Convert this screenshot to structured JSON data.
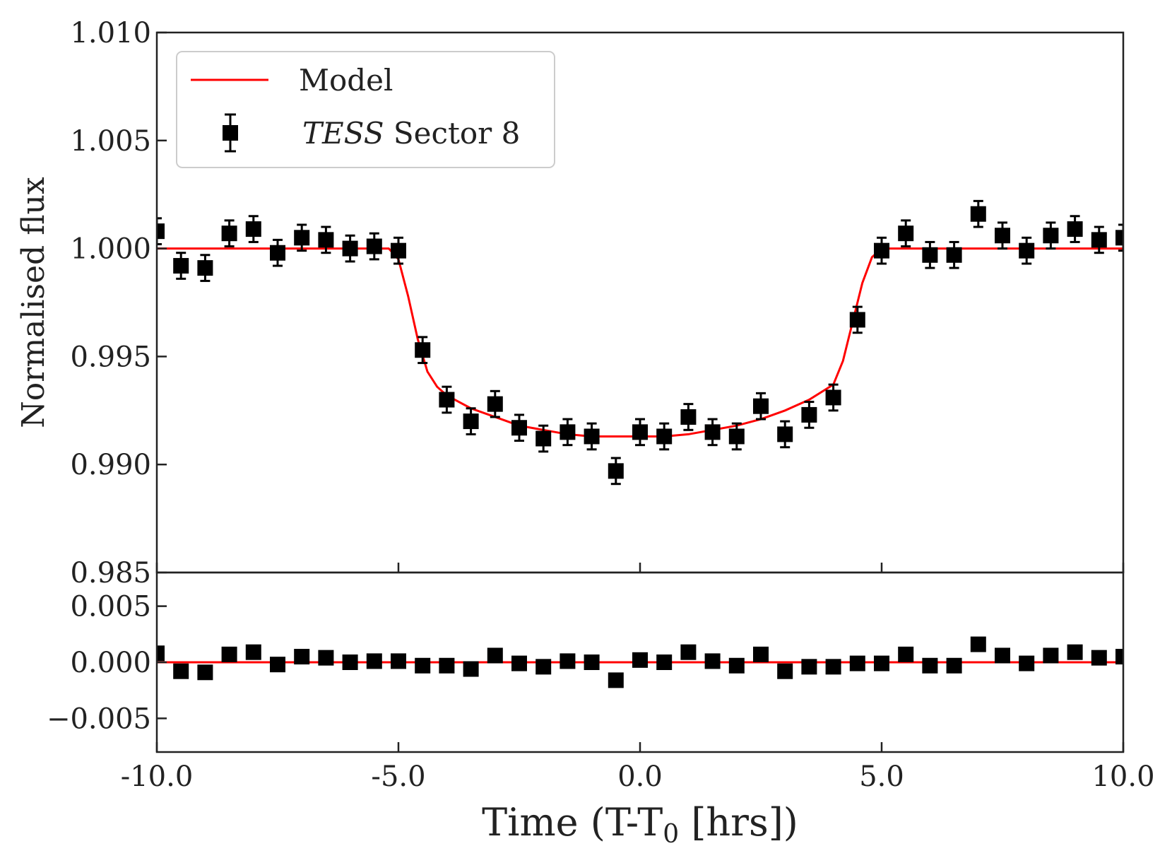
{
  "chart_data": [
    {
      "type": "scatter",
      "panel": "main",
      "xlabel": "Time (T-T",
      "xlabel_sub": "0",
      "xlabel_suffix": " [hrs])",
      "ylabel": "Normalised flux",
      "xlim": [
        -10,
        10
      ],
      "ylim": [
        0.985,
        1.01
      ],
      "x_ticks": [
        -10,
        -5,
        0,
        5,
        10
      ],
      "x_tick_labels": [
        "-10.0",
        "-5.0",
        "0.0",
        "5.0",
        "10.0"
      ],
      "y_ticks": [
        0.985,
        0.99,
        0.995,
        1.0,
        1.005,
        1.01
      ],
      "y_tick_labels": [
        "0.985",
        "0.990",
        "0.995",
        "1.000",
        "1.005",
        "1.010"
      ],
      "legend": {
        "placement": "top-left",
        "entries": [
          {
            "label": "Model",
            "kind": "line",
            "color": "#ff0000"
          },
          {
            "label_italic": "TESS",
            "label": " Sector 8",
            "kind": "errorbar-square",
            "color": "#000000"
          }
        ]
      },
      "series": [
        {
          "name": "TESS Sector 8",
          "kind": "errorbar-square",
          "color": "#000000",
          "x": [
            -10.0,
            -9.5,
            -9.0,
            -8.5,
            -8.0,
            -7.5,
            -7.0,
            -6.5,
            -6.0,
            -5.5,
            -5.0,
            -4.5,
            -4.0,
            -3.5,
            -3.0,
            -2.5,
            -2.0,
            -1.5,
            -1.0,
            -0.5,
            0.0,
            0.5,
            1.0,
            1.5,
            2.0,
            2.5,
            3.0,
            3.5,
            4.0,
            4.5,
            5.0,
            5.5,
            6.0,
            6.5,
            7.0,
            7.5,
            8.0,
            8.5,
            9.0,
            9.5,
            10.0
          ],
          "y": [
            1.0008,
            0.9992,
            0.9991,
            1.0007,
            1.0009,
            0.9998,
            1.0005,
            1.0004,
            1.0,
            1.0001,
            0.9999,
            0.9953,
            0.993,
            0.992,
            0.9928,
            0.9917,
            0.9912,
            0.9915,
            0.9913,
            0.9897,
            0.9915,
            0.9913,
            0.9922,
            0.9915,
            0.9913,
            0.9927,
            0.9914,
            0.9923,
            0.9931,
            0.9967,
            0.9999,
            1.0007,
            0.9997,
            0.9997,
            1.0016,
            1.0006,
            0.9999,
            1.0006,
            1.0009,
            1.0004,
            1.0005
          ],
          "yerr": [
            0.0006,
            0.0006,
            0.0006,
            0.0006,
            0.0006,
            0.0006,
            0.0006,
            0.0006,
            0.0006,
            0.0006,
            0.0006,
            0.0006,
            0.0006,
            0.0006,
            0.0006,
            0.0006,
            0.0006,
            0.0006,
            0.0006,
            0.0006,
            0.0006,
            0.0006,
            0.0006,
            0.0006,
            0.0006,
            0.0006,
            0.0006,
            0.0006,
            0.0006,
            0.0006,
            0.0006,
            0.0006,
            0.0006,
            0.0006,
            0.0006,
            0.0006,
            0.0006,
            0.0006,
            0.0006,
            0.0006,
            0.0006
          ]
        },
        {
          "name": "Model",
          "kind": "line",
          "color": "#ff0000",
          "x": [
            -10.0,
            -5.2,
            -5.0,
            -4.8,
            -4.6,
            -4.4,
            -4.2,
            -4.0,
            -3.5,
            -3.0,
            -2.5,
            -2.0,
            -1.5,
            -1.0,
            -0.5,
            0.0,
            0.5,
            1.0,
            1.5,
            2.0,
            2.5,
            3.0,
            3.5,
            4.0,
            4.2,
            4.4,
            4.6,
            4.8,
            5.0,
            5.2,
            10.0
          ],
          "y": [
            1.0,
            1.0,
            0.9995,
            0.9978,
            0.9958,
            0.9943,
            0.9936,
            0.9932,
            0.9926,
            0.9922,
            0.9918,
            0.9916,
            0.9914,
            0.9913,
            0.9913,
            0.9913,
            0.9913,
            0.9914,
            0.9916,
            0.9918,
            0.9921,
            0.9925,
            0.993,
            0.9937,
            0.9948,
            0.9966,
            0.9984,
            0.9996,
            1.0,
            1.0,
            1.0
          ]
        }
      ]
    },
    {
      "type": "scatter",
      "panel": "residuals",
      "xlim": [
        -10,
        10
      ],
      "ylim": [
        -0.008,
        0.008
      ],
      "y_ticks": [
        -0.005,
        0.0,
        0.005
      ],
      "y_tick_labels": [
        "−0.005",
        "0.000",
        "0.005"
      ],
      "series": [
        {
          "name": "Residuals",
          "kind": "square",
          "color": "#000000",
          "x": [
            -10.0,
            -9.5,
            -9.0,
            -8.5,
            -8.0,
            -7.5,
            -7.0,
            -6.5,
            -6.0,
            -5.5,
            -5.0,
            -4.5,
            -4.0,
            -3.5,
            -3.0,
            -2.5,
            -2.0,
            -1.5,
            -1.0,
            -0.5,
            0.0,
            0.5,
            1.0,
            1.5,
            2.0,
            2.5,
            3.0,
            3.5,
            4.0,
            4.5,
            5.0,
            5.5,
            6.0,
            6.5,
            7.0,
            7.5,
            8.0,
            8.5,
            9.0,
            9.5,
            10.0
          ],
          "y": [
            0.0008,
            -0.0008,
            -0.0009,
            0.0007,
            0.0009,
            -0.0002,
            0.0005,
            0.0004,
            0.0,
            0.0001,
            0.0001,
            -0.0003,
            -0.0003,
            -0.0006,
            0.0006,
            -0.0001,
            -0.0004,
            0.0001,
            0.0,
            -0.0016,
            0.0002,
            0.0,
            0.0009,
            0.0001,
            -0.0003,
            0.0007,
            -0.0008,
            -0.0004,
            -0.0004,
            -0.0001,
            -0.0001,
            0.0007,
            -0.0003,
            -0.0003,
            0.0016,
            0.0006,
            -0.0001,
            0.0006,
            0.0009,
            0.0004,
            0.0005
          ]
        },
        {
          "name": "Zero line",
          "kind": "line",
          "color": "#ff0000",
          "x": [
            -10.0,
            10.0
          ],
          "y": [
            0.0,
            0.0
          ]
        }
      ]
    }
  ]
}
